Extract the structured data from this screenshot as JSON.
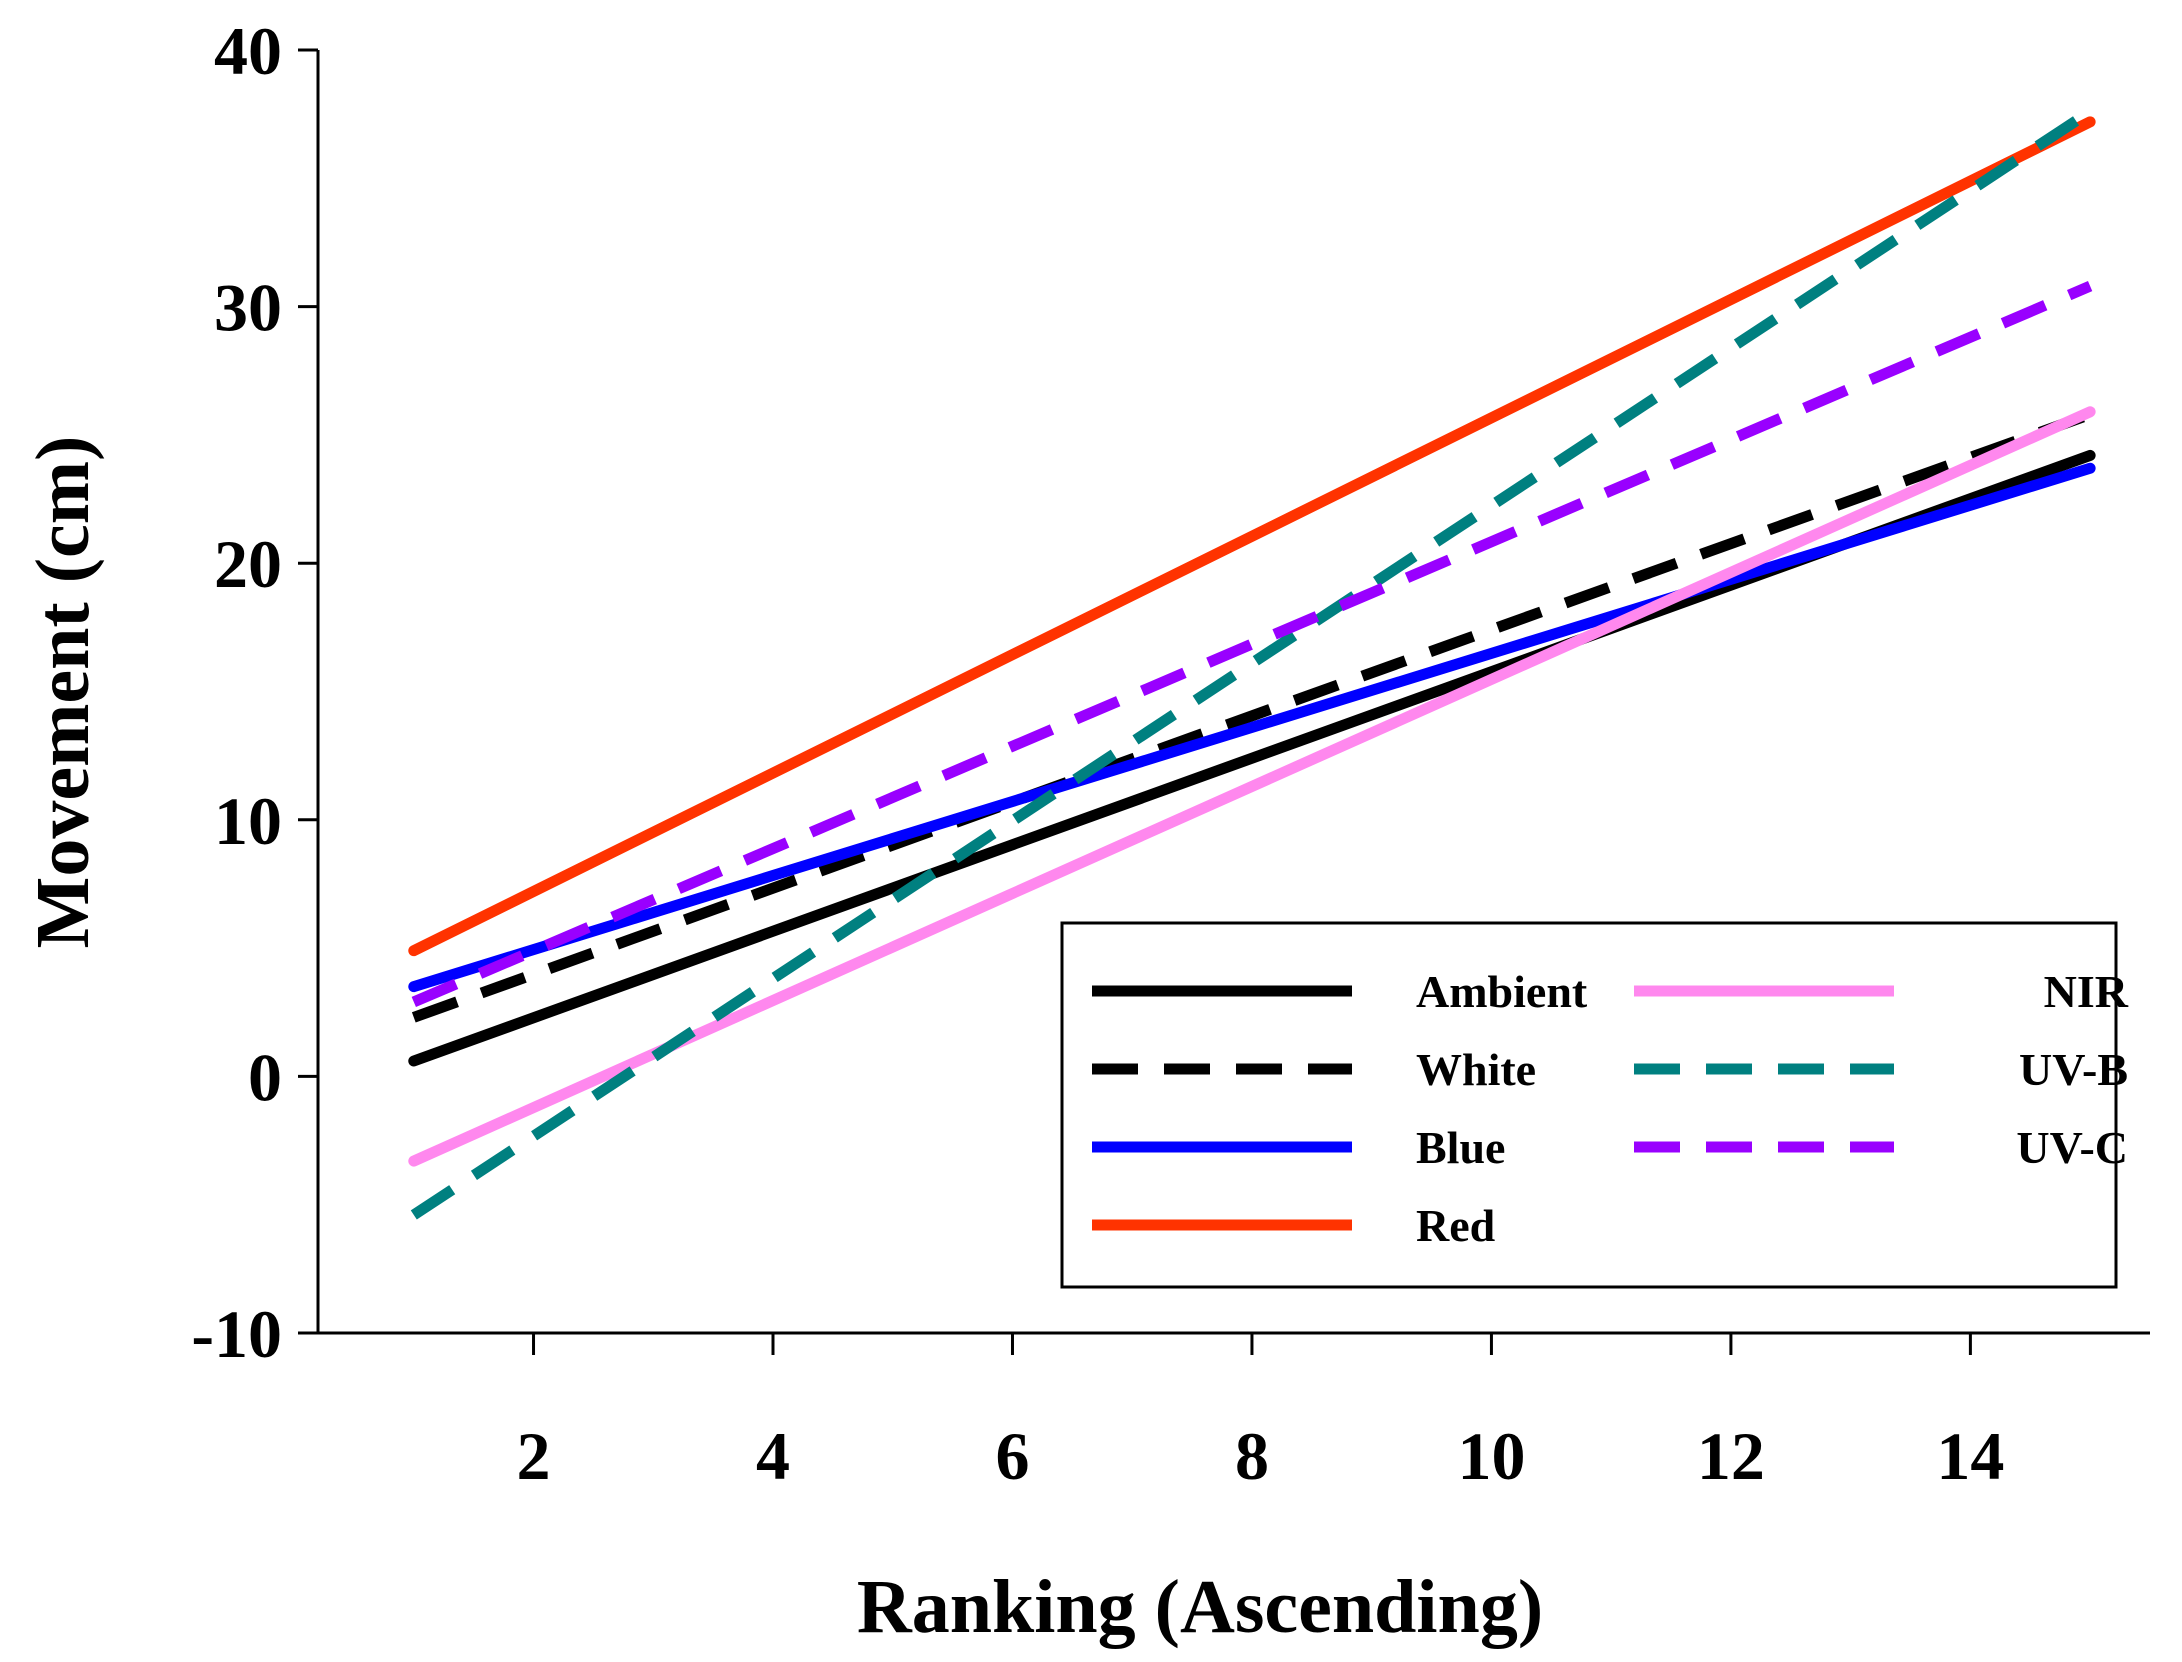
{
  "chart_data": {
    "type": "line",
    "title": "",
    "xlabel": "Ranking (Ascending)",
    "ylabel": "Movement (cm)",
    "xlim": [
      0.2,
      15.5
    ],
    "ylim": [
      -10,
      40
    ],
    "xticks": [
      2,
      4,
      6,
      8,
      10,
      12,
      14
    ],
    "yticks": [
      -10,
      0,
      10,
      20,
      30,
      40
    ],
    "legend_position": "lower-right",
    "series": [
      {
        "name": "Ambient",
        "color": "#000000",
        "dashed": false,
        "x": [
          1,
          15
        ],
        "y": [
          0.6,
          24.2
        ]
      },
      {
        "name": "White",
        "color": "#000000",
        "dashed": true,
        "x": [
          1,
          15
        ],
        "y": [
          2.3,
          25.8
        ]
      },
      {
        "name": "Blue",
        "color": "#0000ff",
        "dashed": false,
        "x": [
          1,
          15
        ],
        "y": [
          3.5,
          23.7
        ]
      },
      {
        "name": "Red",
        "color": "#ff3300",
        "dashed": false,
        "x": [
          1,
          15
        ],
        "y": [
          4.9,
          37.2
        ]
      },
      {
        "name": "NIR",
        "color": "#ff88ee",
        "dashed": false,
        "x": [
          1,
          15
        ],
        "y": [
          -3.3,
          25.9
        ]
      },
      {
        "name": "UV-B",
        "color": "#008080",
        "dashed": true,
        "x": [
          1,
          15
        ],
        "y": [
          -5.4,
          37.6
        ]
      },
      {
        "name": "UV-C",
        "color": "#9900ff",
        "dashed": true,
        "x": [
          1,
          15
        ],
        "y": [
          2.9,
          30.8
        ]
      }
    ]
  }
}
